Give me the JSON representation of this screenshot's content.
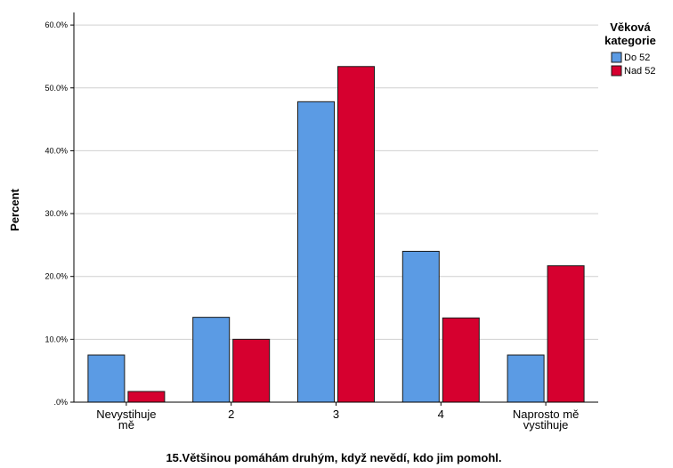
{
  "chart_data": {
    "type": "bar",
    "title": "",
    "xlabel": "15.Většinou pomáhám druhým, když nevědí, kdo jim pomohl.",
    "ylabel": "Percent",
    "categories": [
      [
        "Nevystihuje",
        "mě"
      ],
      [
        "2"
      ],
      [
        "3"
      ],
      [
        "4"
      ],
      [
        "Naprosto mě",
        "vystihuje"
      ]
    ],
    "yticks": [
      0,
      10,
      20,
      30,
      40,
      50,
      60
    ],
    "ytick_labels": [
      ".0%",
      "10.0%",
      "20.0%",
      "30.0%",
      "40.0%",
      "50.0%",
      "60.0%"
    ],
    "ylim": [
      0,
      62
    ],
    "grid": true,
    "legend": {
      "title": [
        "Věková",
        "kategorie"
      ],
      "placement": "top-right"
    },
    "series": [
      {
        "name": "Do 52",
        "color": "#5b9be4",
        "values": [
          7.5,
          13.5,
          47.8,
          24.0,
          7.5
        ]
      },
      {
        "name": "Nad 52",
        "color": "#d6002f",
        "values": [
          1.7,
          10.0,
          53.4,
          13.4,
          21.7
        ]
      }
    ]
  }
}
